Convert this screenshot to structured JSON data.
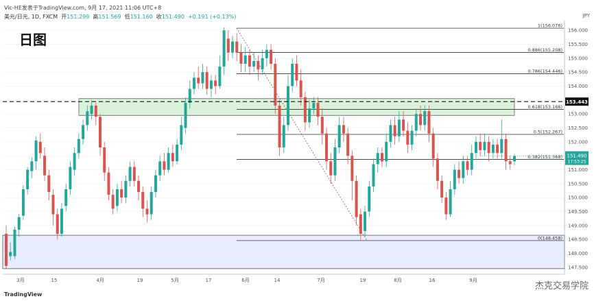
{
  "header": {
    "publisher": "Vic-HE发表于TradingView.com, 9月 17, 2021 11:06 UTC+8",
    "symbol": "美元/日元, 1D, FXCM",
    "open_label": "开",
    "open": "151.299",
    "high_label": "高",
    "high": "151.569",
    "low_label": "低",
    "low": "151.160",
    "close_label": "收",
    "close": "151.490",
    "change": "+0.191 (+0.13%)",
    "currency": "JPY"
  },
  "page_label": "日图",
  "footer": {
    "logo": "TradingView",
    "brand": "杰克交易学院"
  },
  "chart_data": {
    "type": "candlestick",
    "yaxis": {
      "min": 147.25,
      "max": 156.35,
      "ticks": [
        "147.500",
        "148.000",
        "148.500",
        "149.000",
        "149.500",
        "150.000",
        "150.500",
        "151.000",
        "151.500",
        "152.000",
        "152.500",
        "153.000",
        "153.500",
        "154.000",
        "154.500",
        "155.000",
        "155.500",
        "156.000"
      ]
    },
    "xaxis": {
      "labels": [
        "3月",
        "15",
        "4月",
        "19",
        "5月",
        "17",
        "6月",
        "14",
        "7月",
        "19",
        "8月",
        "16",
        "9月"
      ]
    },
    "fib_levels": [
      {
        "label": "1(156.076)",
        "value": 156.076
      },
      {
        "label": "0.886(155.208)",
        "value": 155.208
      },
      {
        "label": "0.786(154.446)",
        "value": 154.446
      },
      {
        "label": "0.618(153.166)",
        "value": 153.166
      },
      {
        "label": "0.5(152.267)",
        "value": 152.267
      },
      {
        "label": "0.382(151.368)",
        "value": 151.368
      },
      {
        "label": "0(148.458)",
        "value": 148.458
      }
    ],
    "markers": [
      {
        "label": "153.443",
        "value": 153.443,
        "style": "dashed"
      },
      {
        "label": "151.490",
        "sub": "17:53:25",
        "value": 151.49,
        "style": "last"
      }
    ],
    "zones": [
      {
        "name": "resistance",
        "from": 152.95,
        "to": 153.55,
        "color": "#d9f2d9"
      },
      {
        "name": "support",
        "from": 147.45,
        "to": 148.65,
        "color": "#e8ecff"
      }
    ],
    "colors": {
      "up": "#26a69a",
      "down": "#d9534f"
    },
    "candles": [
      [
        148.7,
        147.55,
        149.0,
        147.45
      ],
      [
        147.9,
        148.05,
        148.4,
        147.75
      ],
      [
        147.9,
        148.85,
        148.95,
        147.8
      ],
      [
        148.85,
        149.3,
        149.4,
        148.6
      ],
      [
        149.35,
        150.3,
        150.45,
        149.2
      ],
      [
        150.3,
        151.0,
        151.1,
        150.1
      ],
      [
        150.95,
        151.3,
        151.45,
        150.7
      ],
      [
        151.3,
        152.05,
        152.2,
        151.0
      ],
      [
        152.0,
        151.6,
        152.3,
        151.4
      ],
      [
        151.5,
        150.8,
        151.8,
        150.6
      ],
      [
        150.8,
        150.2,
        151.0,
        149.9
      ],
      [
        150.1,
        149.4,
        150.3,
        149.0
      ],
      [
        149.4,
        148.7,
        149.6,
        148.5
      ],
      [
        148.7,
        149.6,
        149.8,
        148.6
      ],
      [
        149.7,
        150.3,
        150.5,
        149.5
      ],
      [
        150.3,
        151.1,
        151.3,
        150.1
      ],
      [
        151.0,
        151.6,
        151.8,
        150.8
      ],
      [
        151.6,
        152.1,
        152.3,
        151.4
      ],
      [
        152.1,
        152.6,
        152.8,
        151.9
      ],
      [
        152.6,
        153.1,
        153.3,
        152.4
      ],
      [
        153.0,
        153.3,
        153.5,
        152.8
      ],
      [
        153.3,
        152.9,
        153.4,
        152.6
      ],
      [
        152.9,
        151.8,
        153.0,
        151.5
      ],
      [
        151.8,
        150.9,
        152.0,
        150.6
      ],
      [
        150.9,
        150.1,
        151.1,
        149.9
      ],
      [
        150.1,
        149.6,
        150.3,
        149.4
      ],
      [
        149.7,
        150.3,
        150.5,
        149.5
      ],
      [
        150.3,
        150.0,
        150.6,
        149.8
      ],
      [
        150.0,
        150.6,
        150.8,
        149.8
      ],
      [
        150.6,
        151.1,
        151.3,
        150.4
      ],
      [
        151.1,
        150.6,
        151.3,
        150.4
      ],
      [
        150.6,
        150.2,
        150.8,
        149.9
      ],
      [
        150.2,
        149.6,
        150.4,
        149.3
      ],
      [
        149.6,
        149.4,
        149.9,
        149.1
      ],
      [
        149.4,
        150.2,
        150.4,
        149.2
      ],
      [
        150.2,
        150.8,
        151.0,
        150.0
      ],
      [
        150.8,
        151.3,
        151.5,
        150.6
      ],
      [
        151.3,
        151.0,
        151.6,
        150.8
      ],
      [
        151.0,
        151.6,
        151.8,
        150.9
      ],
      [
        151.6,
        151.3,
        151.9,
        151.1
      ],
      [
        151.3,
        151.9,
        152.1,
        151.2
      ],
      [
        151.9,
        152.6,
        152.9,
        151.7
      ],
      [
        152.5,
        153.4,
        153.6,
        152.3
      ],
      [
        153.4,
        153.9,
        154.2,
        153.2
      ],
      [
        153.9,
        154.3,
        154.5,
        153.7
      ],
      [
        154.3,
        154.1,
        154.7,
        153.9
      ],
      [
        154.1,
        154.5,
        154.8,
        153.9
      ],
      [
        154.5,
        153.9,
        154.7,
        153.7
      ],
      [
        153.9,
        154.2,
        154.4,
        153.6
      ],
      [
        154.2,
        154.0,
        154.4,
        153.7
      ],
      [
        154.0,
        154.7,
        155.1,
        153.9
      ],
      [
        154.7,
        156.0,
        156.1,
        154.4
      ],
      [
        155.7,
        155.2,
        156.0,
        154.9
      ],
      [
        155.2,
        155.6,
        155.8,
        155.0
      ],
      [
        155.6,
        155.2,
        155.9,
        154.9
      ],
      [
        155.2,
        154.8,
        155.5,
        154.5
      ],
      [
        154.8,
        155.1,
        155.4,
        154.5
      ],
      [
        155.1,
        154.7,
        155.3,
        154.4
      ],
      [
        154.7,
        154.9,
        155.2,
        154.5
      ],
      [
        154.9,
        154.6,
        155.1,
        154.2
      ],
      [
        154.6,
        155.0,
        155.3,
        154.4
      ],
      [
        155.0,
        155.3,
        155.5,
        154.7
      ],
      [
        155.3,
        154.8,
        155.5,
        154.6
      ],
      [
        154.8,
        153.3,
        155.0,
        153.0
      ],
      [
        153.3,
        151.8,
        153.5,
        151.5
      ],
      [
        151.8,
        152.6,
        152.9,
        151.6
      ],
      [
        152.6,
        154.0,
        154.4,
        152.4
      ],
      [
        154.0,
        154.8,
        155.0,
        153.8
      ],
      [
        154.8,
        154.2,
        155.1,
        154.0
      ],
      [
        154.2,
        153.6,
        154.6,
        153.3
      ],
      [
        153.6,
        152.7,
        153.8,
        152.4
      ],
      [
        152.7,
        153.2,
        153.5,
        152.5
      ],
      [
        153.2,
        153.4,
        153.6,
        153.0
      ],
      [
        153.4,
        152.9,
        153.6,
        152.6
      ],
      [
        152.9,
        152.3,
        153.2,
        151.9
      ],
      [
        152.3,
        151.3,
        152.5,
        151.0
      ],
      [
        151.3,
        150.8,
        151.6,
        150.5
      ],
      [
        150.8,
        151.8,
        152.1,
        150.6
      ],
      [
        151.8,
        152.6,
        152.9,
        151.6
      ],
      [
        152.6,
        152.3,
        152.9,
        152.0
      ],
      [
        152.3,
        151.5,
        152.5,
        151.2
      ],
      [
        151.5,
        150.6,
        151.7,
        149.9
      ],
      [
        150.6,
        149.3,
        150.8,
        149.0
      ],
      [
        149.4,
        148.7,
        149.6,
        148.46
      ],
      [
        148.8,
        149.5,
        149.7,
        148.6
      ],
      [
        149.5,
        150.4,
        150.6,
        149.3
      ],
      [
        150.4,
        151.2,
        151.4,
        150.2
      ],
      [
        151.2,
        151.6,
        151.8,
        150.9
      ],
      [
        151.6,
        151.3,
        151.8,
        151.1
      ],
      [
        151.3,
        152.0,
        152.3,
        151.1
      ],
      [
        152.0,
        152.6,
        152.8,
        151.8
      ],
      [
        152.6,
        152.2,
        152.9,
        151.9
      ],
      [
        152.2,
        152.8,
        153.1,
        152.0
      ],
      [
        152.8,
        152.4,
        153.1,
        152.2
      ],
      [
        152.4,
        151.9,
        152.7,
        151.6
      ],
      [
        151.9,
        152.4,
        152.6,
        151.7
      ],
      [
        152.4,
        153.0,
        153.2,
        152.2
      ],
      [
        153.0,
        152.6,
        153.3,
        152.4
      ],
      [
        152.6,
        153.1,
        153.3,
        152.4
      ],
      [
        153.1,
        152.3,
        153.3,
        152.0
      ],
      [
        152.3,
        151.4,
        152.5,
        151.1
      ],
      [
        151.4,
        150.6,
        151.6,
        150.3
      ],
      [
        150.6,
        150.0,
        150.8,
        149.8
      ],
      [
        150.0,
        149.4,
        150.2,
        149.2
      ],
      [
        149.4,
        150.3,
        150.6,
        149.3
      ],
      [
        150.3,
        151.0,
        151.2,
        150.1
      ],
      [
        151.0,
        150.7,
        151.3,
        150.5
      ],
      [
        150.7,
        151.3,
        151.5,
        150.5
      ],
      [
        151.3,
        151.0,
        151.5,
        150.8
      ],
      [
        151.0,
        151.6,
        151.9,
        150.8
      ],
      [
        151.6,
        152.0,
        152.2,
        151.4
      ],
      [
        152.0,
        151.7,
        152.3,
        151.5
      ],
      [
        151.7,
        152.0,
        152.3,
        151.5
      ],
      [
        152.0,
        151.6,
        152.2,
        151.3
      ],
      [
        151.6,
        151.9,
        152.1,
        151.4
      ],
      [
        151.9,
        151.6,
        152.1,
        151.4
      ],
      [
        151.6,
        152.1,
        152.8,
        151.4
      ],
      [
        152.1,
        151.3,
        152.3,
        151.0
      ],
      [
        151.3,
        151.2,
        151.5,
        151.0
      ],
      [
        151.3,
        151.49,
        151.57,
        151.16
      ]
    ]
  }
}
